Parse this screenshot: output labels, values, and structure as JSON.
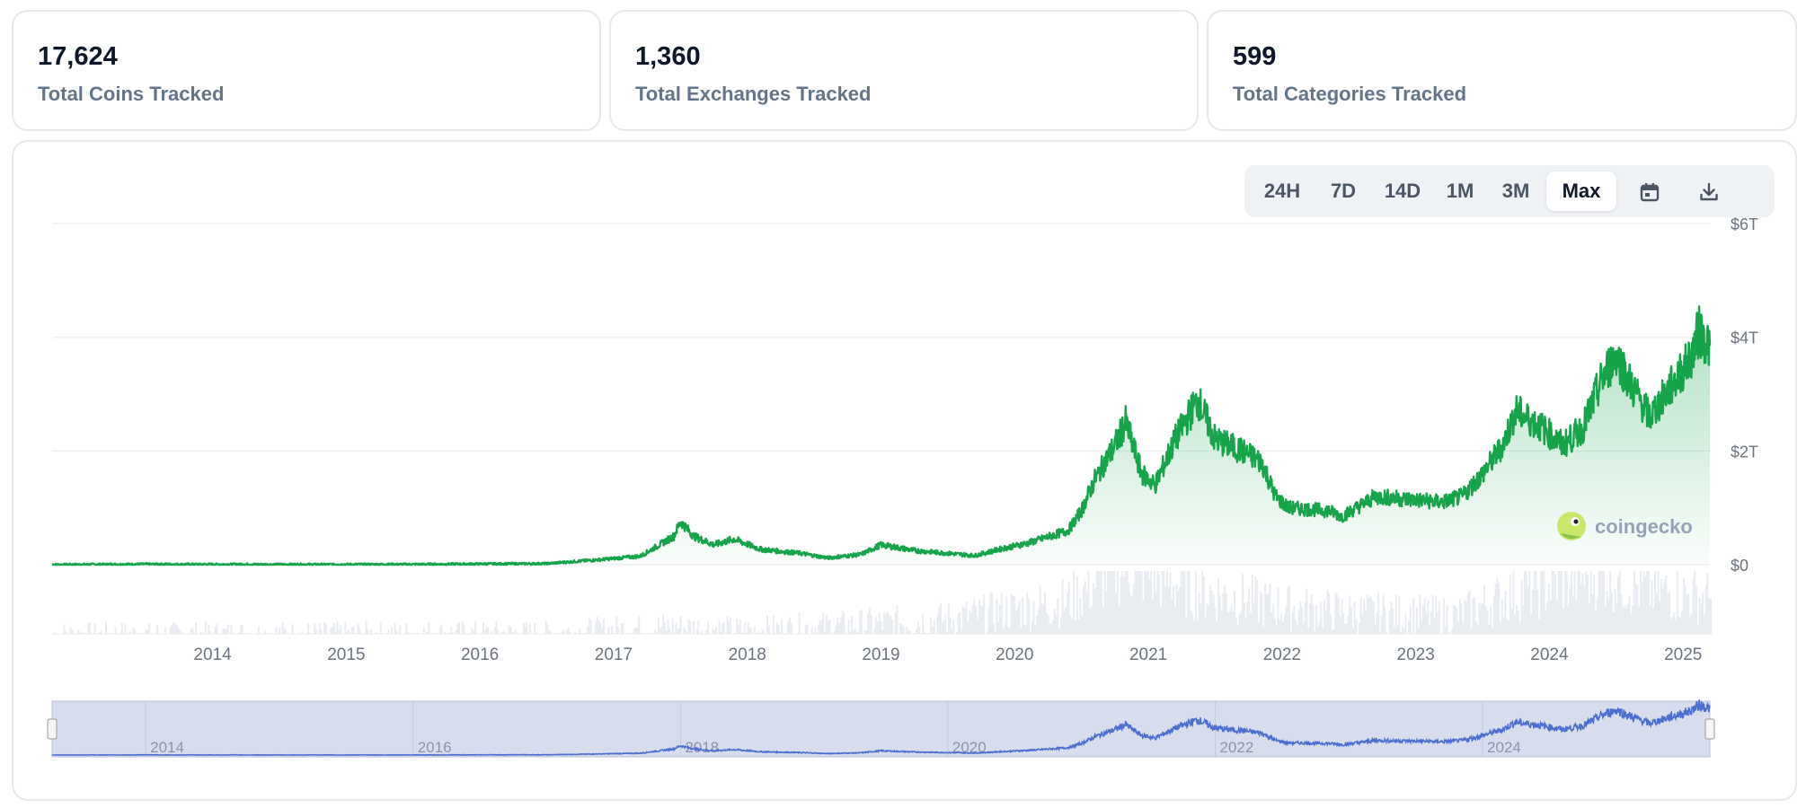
{
  "stats": [
    {
      "value": "17,624",
      "label": "Total Coins Tracked"
    },
    {
      "value": "1,360",
      "label": "Total Exchanges Tracked"
    },
    {
      "value": "599",
      "label": "Total Categories Tracked"
    }
  ],
  "range_buttons": [
    {
      "label": "24H",
      "active": false
    },
    {
      "label": "7D",
      "active": false
    },
    {
      "label": "14D",
      "active": false
    },
    {
      "label": "1M",
      "active": false
    },
    {
      "label": "3M",
      "active": false
    },
    {
      "label": "Max",
      "active": true
    }
  ],
  "icons": {
    "calendar": "calendar-icon",
    "download": "download-icon",
    "logo": "coingecko-logo-icon"
  },
  "watermark": "coingecko",
  "colors": {
    "line": "#16a34a",
    "fill": "#16a34a",
    "navigator": "#4a6fd1",
    "navigator_bg": "#d8ddee"
  },
  "chart_data": {
    "type": "area",
    "yticks": [
      "$6T",
      "$4T",
      "$2T",
      "$0"
    ],
    "ylim": [
      0,
      6
    ],
    "xlim": [
      2013.3,
      2025.7
    ],
    "xticks": [
      "2014",
      "2015",
      "2016",
      "2017",
      "2018",
      "2019",
      "2020",
      "2021",
      "2022",
      "2023",
      "2024",
      "2025"
    ],
    "navigator_ticks": [
      "2014",
      "2016",
      "2018",
      "2020",
      "2022",
      "2024"
    ],
    "series": [
      {
        "values_trillions": [
          [
            2013.3,
            0.002
          ],
          [
            2014.0,
            0.01
          ],
          [
            2015.0,
            0.005
          ],
          [
            2016.0,
            0.007
          ],
          [
            2017.0,
            0.02
          ],
          [
            2017.4,
            0.09
          ],
          [
            2017.7,
            0.15
          ],
          [
            2017.95,
            0.5
          ],
          [
            2018.0,
            0.76
          ],
          [
            2018.1,
            0.5
          ],
          [
            2018.25,
            0.35
          ],
          [
            2018.4,
            0.45
          ],
          [
            2018.6,
            0.27
          ],
          [
            2018.9,
            0.2
          ],
          [
            2019.1,
            0.12
          ],
          [
            2019.35,
            0.18
          ],
          [
            2019.5,
            0.35
          ],
          [
            2019.75,
            0.25
          ],
          [
            2020.0,
            0.2
          ],
          [
            2020.2,
            0.16
          ],
          [
            2020.4,
            0.28
          ],
          [
            2020.6,
            0.38
          ],
          [
            2020.9,
            0.6
          ],
          [
            2021.0,
            0.95
          ],
          [
            2021.1,
            1.5
          ],
          [
            2021.25,
            2.1
          ],
          [
            2021.33,
            2.5
          ],
          [
            2021.45,
            1.6
          ],
          [
            2021.55,
            1.4
          ],
          [
            2021.7,
            2.2
          ],
          [
            2021.87,
            2.9
          ],
          [
            2022.0,
            2.2
          ],
          [
            2022.2,
            2.0
          ],
          [
            2022.35,
            1.8
          ],
          [
            2022.45,
            1.2
          ],
          [
            2022.55,
            1.0
          ],
          [
            2022.85,
            0.95
          ],
          [
            2022.95,
            0.85
          ],
          [
            2023.2,
            1.2
          ],
          [
            2023.45,
            1.15
          ],
          [
            2023.7,
            1.1
          ],
          [
            2023.85,
            1.2
          ],
          [
            2024.0,
            1.6
          ],
          [
            2024.15,
            2.1
          ],
          [
            2024.25,
            2.7
          ],
          [
            2024.45,
            2.4
          ],
          [
            2024.6,
            2.1
          ],
          [
            2024.75,
            2.4
          ],
          [
            2024.9,
            3.3
          ],
          [
            2025.0,
            3.7
          ],
          [
            2025.1,
            3.2
          ],
          [
            2025.25,
            2.6
          ],
          [
            2025.4,
            3.1
          ],
          [
            2025.55,
            3.6
          ],
          [
            2025.62,
            4.1
          ],
          [
            2025.7,
            3.85
          ]
        ]
      }
    ],
    "volume_trillions": [
      [
        2013.3,
        0.0
      ],
      [
        2017.0,
        0.005
      ],
      [
        2017.9,
        0.04
      ],
      [
        2018.5,
        0.02
      ],
      [
        2019.3,
        0.05
      ],
      [
        2020.0,
        0.08
      ],
      [
        2020.9,
        0.18
      ],
      [
        2021.3,
        0.4
      ],
      [
        2021.8,
        0.25
      ],
      [
        2022.5,
        0.15
      ],
      [
        2023.0,
        0.12
      ],
      [
        2023.8,
        0.1
      ],
      [
        2024.2,
        0.22
      ],
      [
        2024.9,
        0.35
      ],
      [
        2025.2,
        0.25
      ],
      [
        2025.7,
        0.2
      ]
    ]
  }
}
